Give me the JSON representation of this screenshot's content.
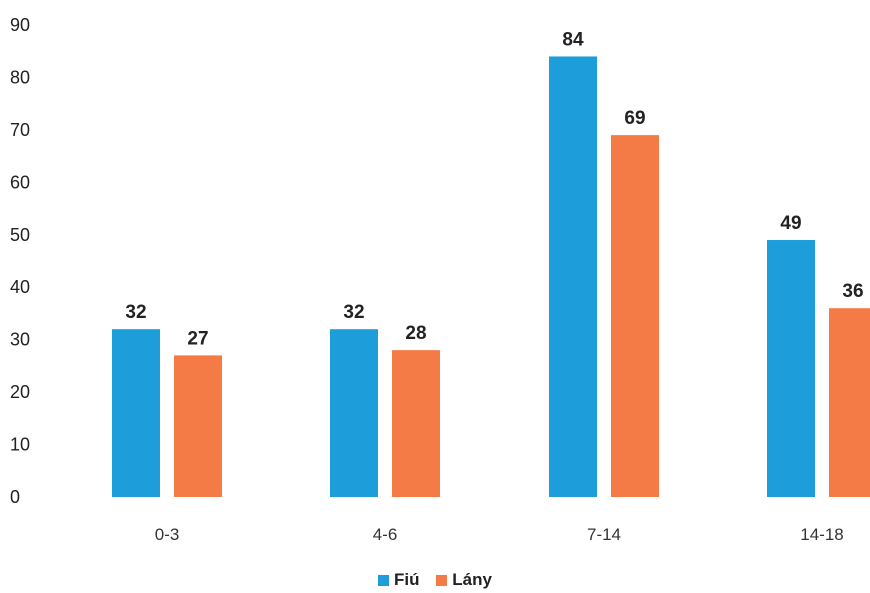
{
  "chart_data": {
    "type": "bar",
    "categories": [
      "0-3",
      "4-6",
      "7-14",
      "14-18"
    ],
    "series": [
      {
        "name": "Fiú",
        "values": [
          32,
          32,
          84,
          49
        ],
        "color": "#1e9ddb"
      },
      {
        "name": "Lány",
        "values": [
          27,
          28,
          69,
          36
        ],
        "color": "#f47a46"
      }
    ],
    "y_ticks": [
      "0",
      "10",
      "20",
      "30",
      "40",
      "50",
      "60",
      "70",
      "80",
      "90"
    ],
    "ylim": [
      0,
      90
    ],
    "grid": false,
    "legend_position": "bottom"
  }
}
